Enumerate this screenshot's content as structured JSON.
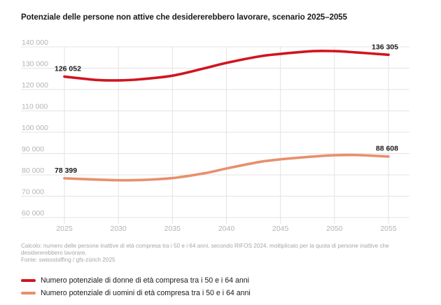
{
  "title": "Potenziale delle persone non attive che desidererebbero lavorare, scenario 2025–2055",
  "notes": {
    "calc": "Calcolo: numero delle persone inattive di età compresa tra i 50 e i 64 anni, secondo RIFOS 2024, moltiplicato per la quota di persone inattive che desidererebbero lavorare.",
    "source": "Fonte: swissstaffing / gfs-zürich 2025"
  },
  "legend": [
    {
      "label": "Numero potenziale di donne di età compresa tra i 50 e i 64 anni",
      "color": "#d0151f"
    },
    {
      "label": "Numero potenziale di uomini di età compresa tra i 50 e i 64 anni",
      "color": "#e88f6c"
    }
  ],
  "chart_data": {
    "type": "line",
    "title": "Potenziale delle persone non attive che desidererebbero lavorare, scenario 2025–2055",
    "x": [
      2025,
      2028,
      2030,
      2032,
      2035,
      2038,
      2040,
      2043,
      2045,
      2048,
      2050,
      2052,
      2055
    ],
    "xticks": [
      2025,
      2030,
      2035,
      2040,
      2045,
      2050,
      2055
    ],
    "xticks_text": [
      "2025",
      "2030",
      "2035",
      "2040",
      "2045",
      "2050",
      "2055"
    ],
    "xlim": [
      2025,
      2055
    ],
    "ylim": [
      60000,
      140000
    ],
    "yticks": [
      60000,
      70000,
      80000,
      90000,
      100000,
      110000,
      120000,
      130000,
      140000
    ],
    "yticks_text": [
      "60 000",
      "70 000",
      "80 000",
      "90 000",
      "100 000",
      "110 000",
      "120 000",
      "130 000",
      "140 000"
    ],
    "grid": true,
    "legend_position": "bottom",
    "series": [
      {
        "name": "Numero potenziale di donne di età compresa tra i 50 e i 64 anni",
        "color": "#d0151f",
        "values": [
          126052,
          124500,
          124300,
          124800,
          126500,
          130000,
          132500,
          135500,
          136700,
          138000,
          138000,
          137400,
          136305
        ],
        "labels": [
          {
            "x": 2025,
            "text": "126 052"
          },
          {
            "x": 2055,
            "text": "136 305"
          }
        ]
      },
      {
        "name": "Numero potenziale di uomini di età compresa tra i 50 e i 64 anni",
        "color": "#e88f6c",
        "values": [
          78399,
          77800,
          77500,
          77600,
          78500,
          80800,
          83000,
          86000,
          87300,
          88600,
          89200,
          89300,
          88608
        ],
        "labels": [
          {
            "x": 2025,
            "text": "78 399"
          },
          {
            "x": 2055,
            "text": "88 608"
          }
        ]
      }
    ]
  }
}
